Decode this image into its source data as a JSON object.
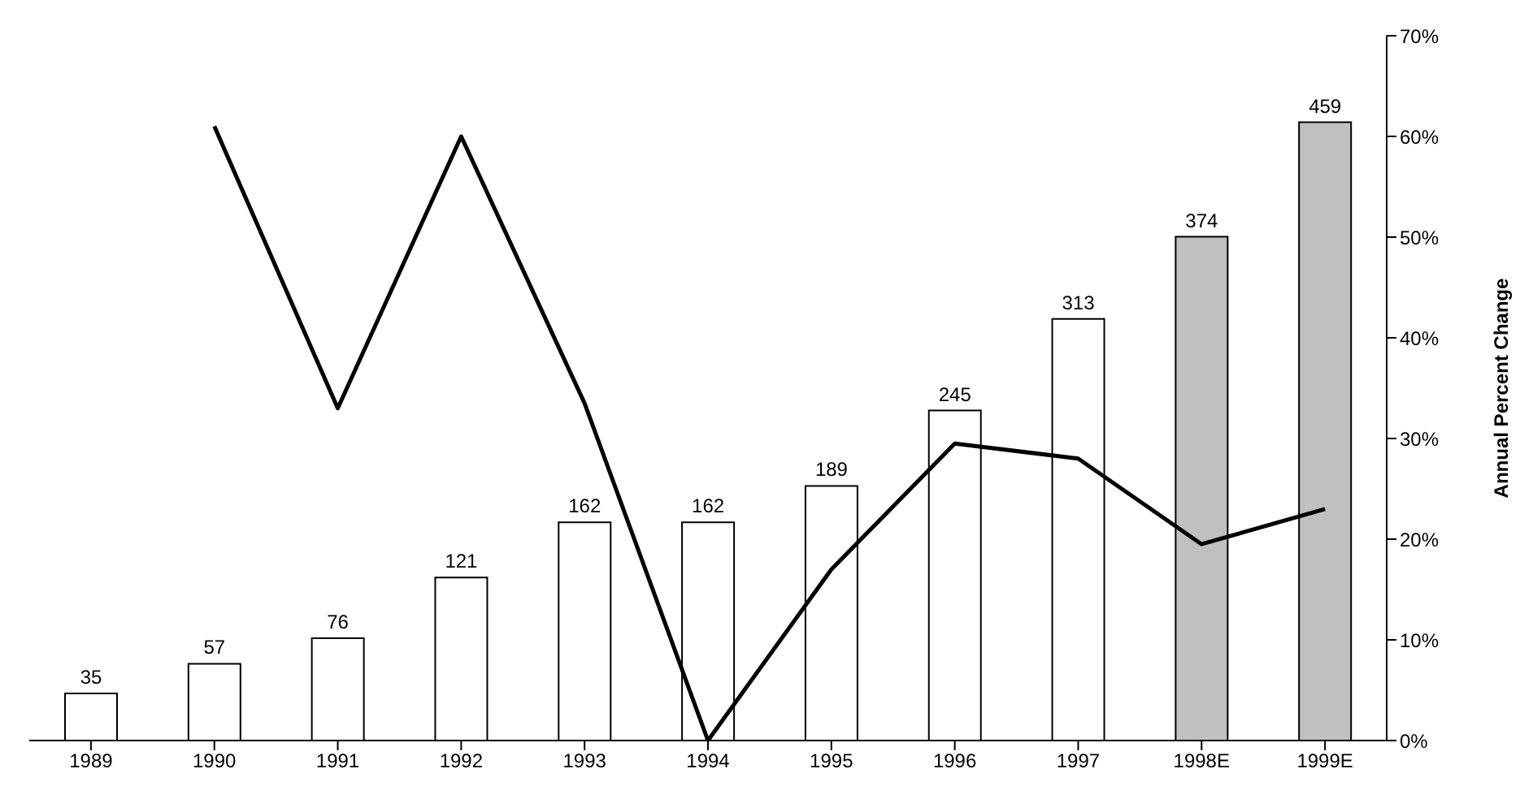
{
  "chart_data": {
    "type": "bar",
    "y2label": "Annual Percent Change",
    "categories": [
      "1989",
      "1990",
      "1991",
      "1992",
      "1993",
      "1994",
      "1995",
      "1996",
      "1997",
      "1998E",
      "1999E"
    ],
    "series": [
      {
        "values": [
          35,
          57,
          76,
          121,
          162,
          162,
          189,
          245,
          313,
          374,
          459
        ],
        "colors": [
          "#ffffff",
          "#ffffff",
          "#ffffff",
          "#ffffff",
          "#ffffff",
          "#ffffff",
          "#ffffff",
          "#ffffff",
          "#ffffff",
          "#c0c0c0",
          "#c0c0c0"
        ],
        "data_labels": true
      },
      {
        "type": "line",
        "axis": "y2",
        "color": "#000000",
        "marker": "none",
        "line_style": "solid",
        "values": [
          null,
          61,
          33,
          60,
          33.5,
          0,
          17,
          29.5,
          28,
          19.5,
          23
        ]
      }
    ],
    "y2lim": [
      0,
      70
    ],
    "y2ticks": [
      {
        "value": 0,
        "label": "0%"
      },
      {
        "value": 10,
        "label": "10%"
      },
      {
        "value": 20,
        "label": "20%"
      },
      {
        "value": 30,
        "label": "30%"
      },
      {
        "value": 40,
        "label": "40%"
      },
      {
        "value": 50,
        "label": "50%"
      },
      {
        "value": 60,
        "label": "60%"
      },
      {
        "value": 70,
        "label": "70%"
      }
    ],
    "grid": false,
    "legend": false
  }
}
